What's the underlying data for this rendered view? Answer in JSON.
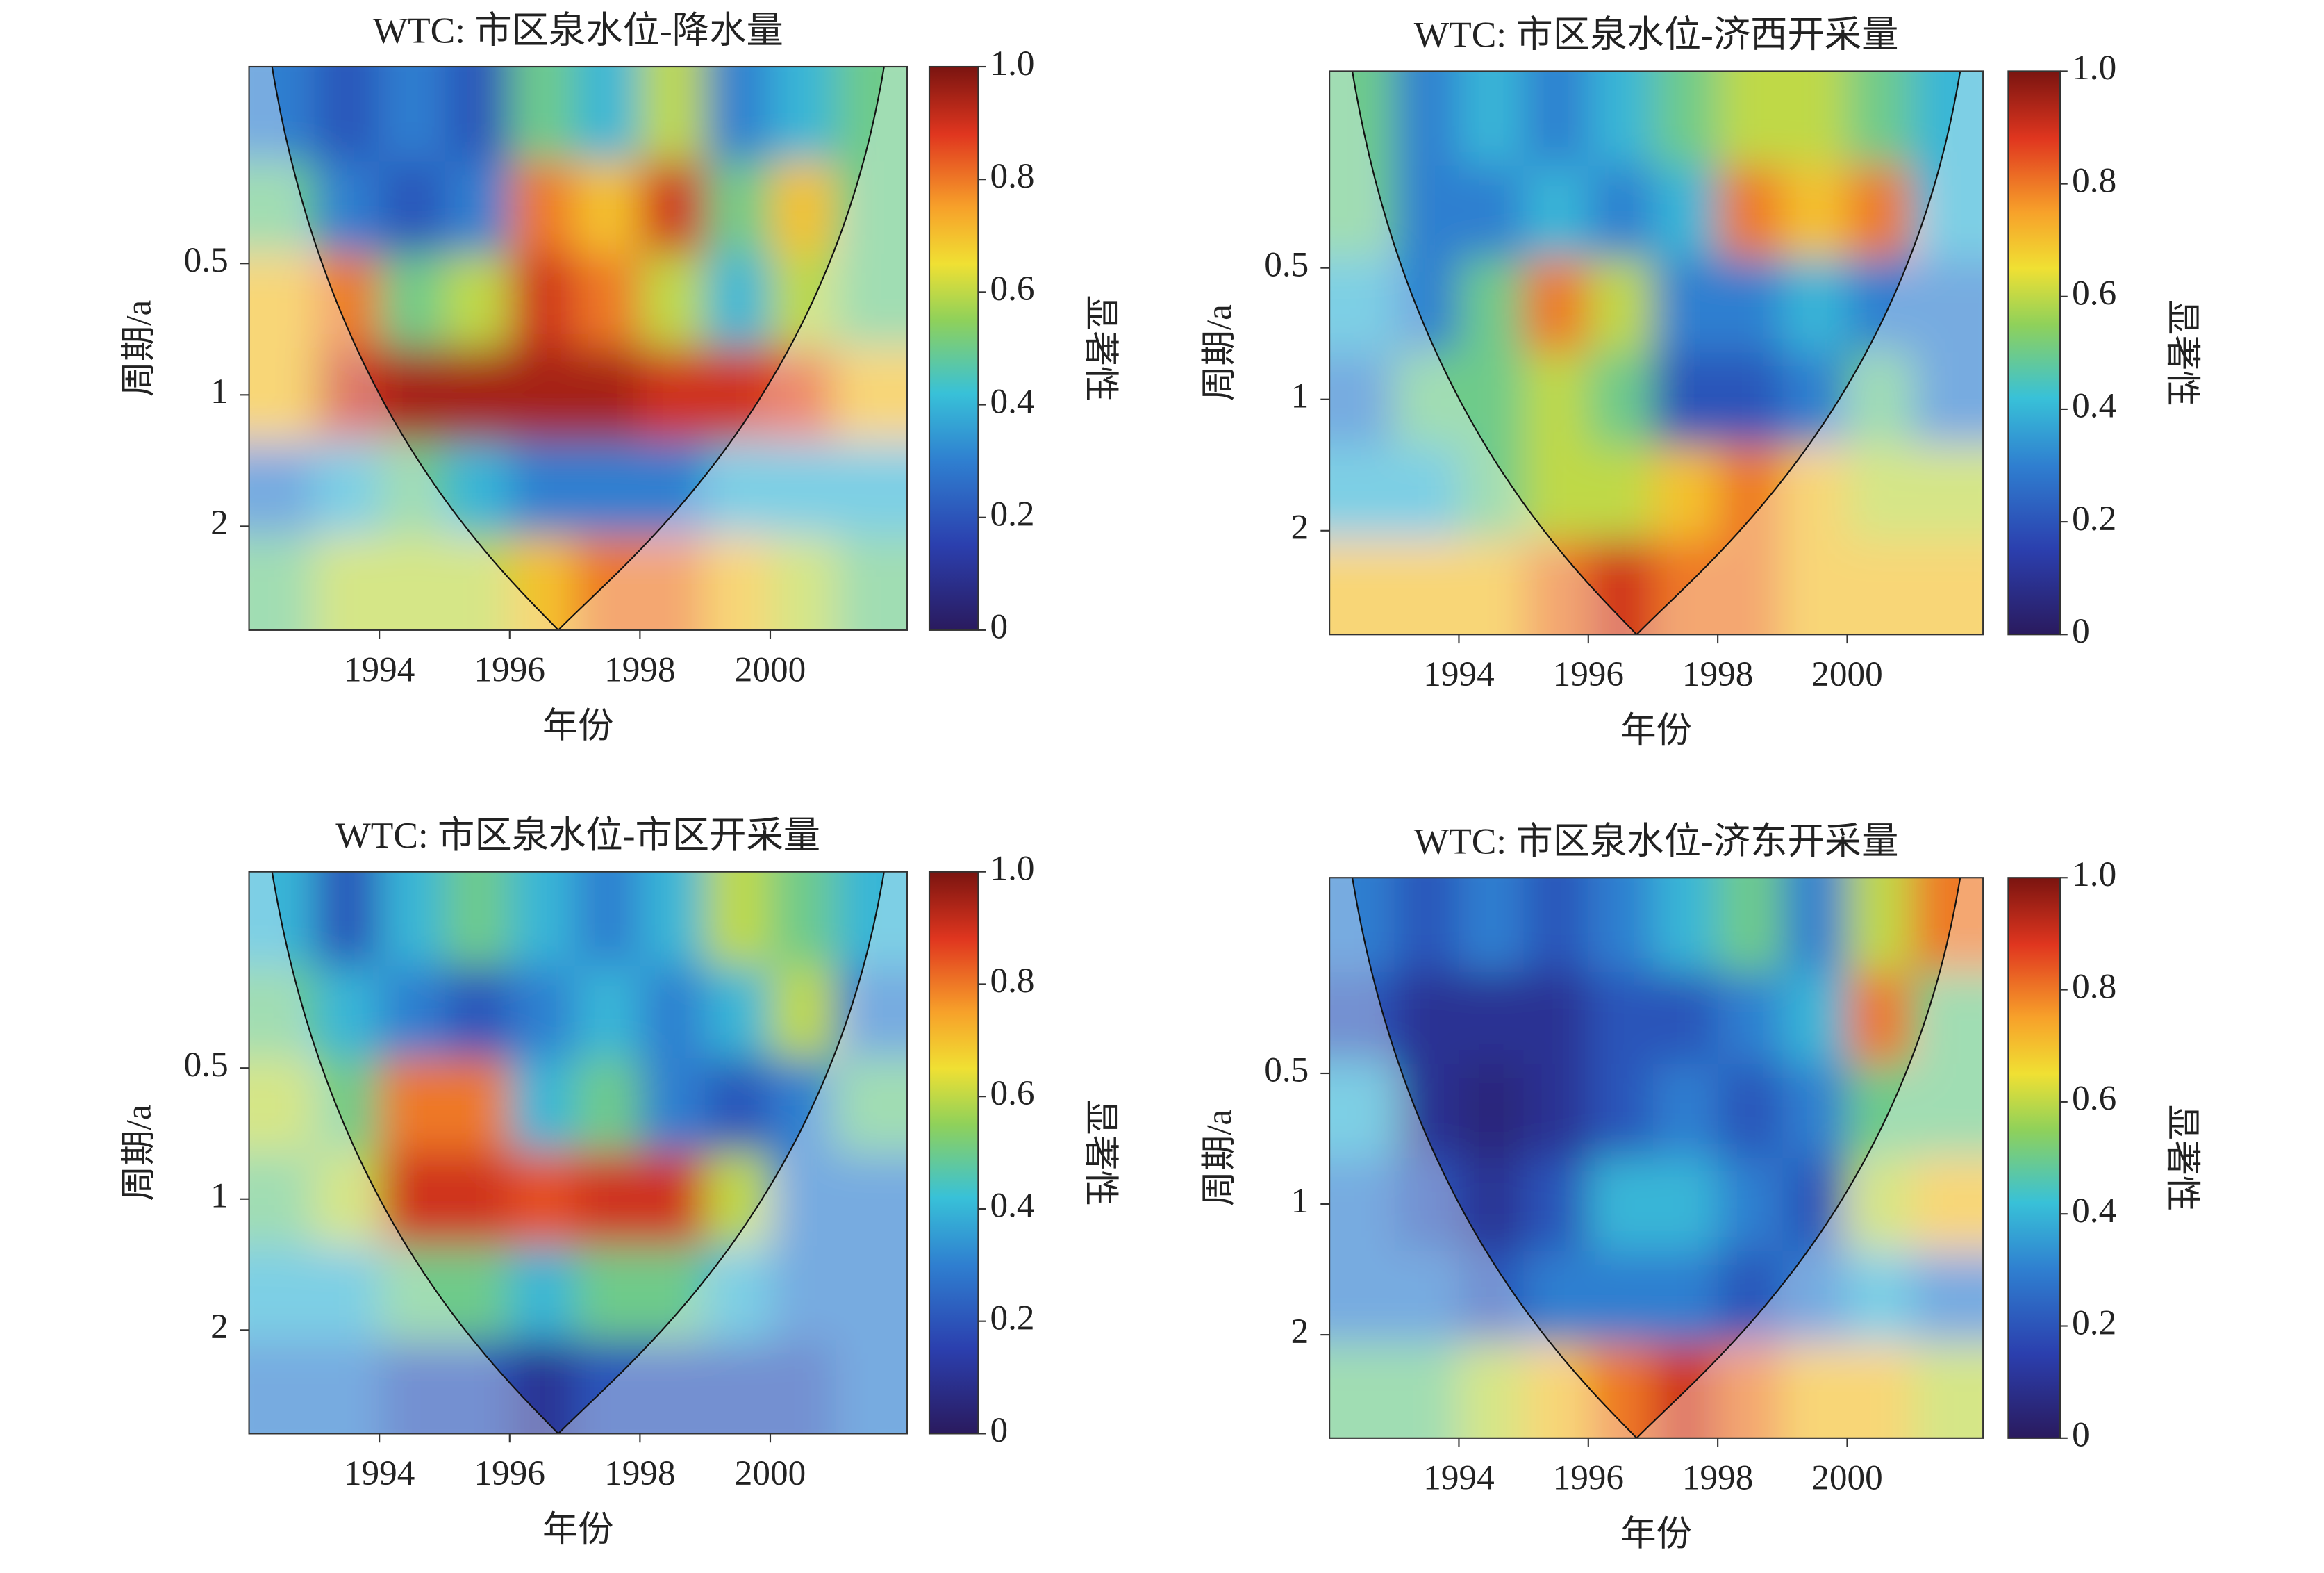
{
  "chart_data": [
    {
      "type": "heatmap",
      "title": "WTC: 市区泉水位-降水量",
      "xlabel": "年份",
      "ylabel": "周期/a",
      "colorbar_label": "显著性",
      "x": [
        1992.5,
        1993.5,
        1994.5,
        1995.5,
        1996.5,
        1997.5,
        1998.5,
        1999.5,
        2000.5,
        2001.5
      ],
      "y": [
        0.23,
        0.37,
        0.61,
        1,
        1.64,
        2.7
      ],
      "values": [
        [
          0.3,
          0.2,
          0.3,
          0.2,
          0.5,
          0.4,
          0.6,
          0.3,
          0.4,
          0.5
        ],
        [
          0.5,
          0.3,
          0.2,
          0.3,
          0.8,
          0.7,
          0.9,
          0.5,
          0.7,
          0.5
        ],
        [
          0.7,
          0.8,
          0.5,
          0.6,
          0.9,
          0.8,
          0.6,
          0.4,
          0.6,
          0.5
        ],
        [
          0.7,
          0.9,
          0.95,
          0.95,
          0.95,
          0.95,
          0.9,
          0.9,
          0.85,
          0.7
        ],
        [
          0.3,
          0.4,
          0.5,
          0.4,
          0.3,
          0.3,
          0.3,
          0.4,
          0.4,
          0.4
        ],
        [
          0.5,
          0.6,
          0.6,
          0.6,
          0.7,
          0.8,
          0.8,
          0.7,
          0.6,
          0.5
        ]
      ],
      "xlim": [
        1992,
        2002.1
      ],
      "ylim": [
        0.177,
        3.46
      ],
      "ylog": true,
      "yinvert": true,
      "xticks": [
        1994,
        1996,
        1998,
        2000
      ],
      "yticks": [
        0.5,
        1,
        2
      ],
      "clim": [
        0,
        1
      ],
      "cticks": [
        0,
        0.2,
        0.4,
        0.6,
        0.8,
        {
          "value": 1,
          "label": "1.0"
        }
      ]
    },
    {
      "type": "heatmap",
      "title": "WTC: 市区泉水位-济西开采量",
      "xlabel": "年份",
      "ylabel": "周期/a",
      "colorbar_label": "显著性",
      "x": [
        1992.5,
        1993.5,
        1994.5,
        1995.5,
        1996.5,
        1997.5,
        1998.5,
        1999.5,
        2000.5,
        2001.5
      ],
      "y": [
        0.23,
        0.37,
        0.61,
        1,
        1.64,
        2.7
      ],
      "values": [
        [
          0.5,
          0.3,
          0.4,
          0.3,
          0.4,
          0.5,
          0.6,
          0.6,
          0.5,
          0.4
        ],
        [
          0.5,
          0.3,
          0.3,
          0.4,
          0.3,
          0.4,
          0.8,
          0.7,
          0.8,
          0.4
        ],
        [
          0.4,
          0.3,
          0.5,
          0.8,
          0.6,
          0.3,
          0.3,
          0.4,
          0.3,
          0.3
        ],
        [
          0.3,
          0.5,
          0.5,
          0.6,
          0.5,
          0.2,
          0.2,
          0.3,
          0.5,
          0.3
        ],
        [
          0.4,
          0.4,
          0.5,
          0.6,
          0.6,
          0.7,
          0.8,
          0.7,
          0.6,
          0.6
        ],
        [
          0.7,
          0.7,
          0.7,
          0.8,
          0.9,
          0.8,
          0.8,
          0.7,
          0.7,
          0.7
        ]
      ],
      "xlim": [
        1992,
        2002.1
      ],
      "ylim": [
        0.177,
        3.46
      ],
      "ylog": true,
      "yinvert": true,
      "xticks": [
        1994,
        1996,
        1998,
        2000
      ],
      "yticks": [
        0.5,
        1,
        2
      ],
      "clim": [
        0,
        1
      ],
      "cticks": [
        0,
        0.2,
        0.4,
        0.6,
        0.8,
        {
          "value": 1,
          "label": "1.0"
        }
      ]
    },
    {
      "type": "heatmap",
      "title": "WTC: 市区泉水位-市区开采量",
      "xlabel": "年份",
      "ylabel": "周期/a",
      "colorbar_label": "显著性",
      "x": [
        1992.5,
        1993.5,
        1994.5,
        1995.5,
        1996.5,
        1997.5,
        1998.5,
        1999.5,
        2000.5,
        2001.5
      ],
      "y": [
        0.23,
        0.37,
        0.61,
        1,
        1.64,
        2.7
      ],
      "values": [
        [
          0.4,
          0.2,
          0.4,
          0.5,
          0.4,
          0.3,
          0.4,
          0.6,
          0.5,
          0.4
        ],
        [
          0.5,
          0.4,
          0.3,
          0.2,
          0.3,
          0.4,
          0.3,
          0.4,
          0.6,
          0.3
        ],
        [
          0.6,
          0.5,
          0.8,
          0.8,
          0.4,
          0.5,
          0.3,
          0.2,
          0.3,
          0.5
        ],
        [
          0.5,
          0.6,
          0.9,
          0.9,
          0.85,
          0.9,
          0.9,
          0.6,
          0.3,
          0.3
        ],
        [
          0.4,
          0.4,
          0.5,
          0.5,
          0.4,
          0.5,
          0.5,
          0.4,
          0.3,
          0.3
        ],
        [
          0.3,
          0.3,
          0.2,
          0.2,
          0.1,
          0.2,
          0.2,
          0.2,
          0.2,
          0.3
        ]
      ],
      "xlim": [
        1992,
        2002.1
      ],
      "ylim": [
        0.177,
        3.46
      ],
      "ylog": true,
      "yinvert": true,
      "xticks": [
        1994,
        1996,
        1998,
        2000
      ],
      "yticks": [
        0.5,
        1,
        2
      ],
      "clim": [
        0,
        1
      ],
      "cticks": [
        0,
        0.2,
        0.4,
        0.6,
        0.8,
        {
          "value": 1,
          "label": "1.0"
        }
      ]
    },
    {
      "type": "heatmap",
      "title": "WTC: 市区泉水位-济东开采量",
      "xlabel": "年份",
      "ylabel": "周期/a",
      "colorbar_label": "显著性",
      "x": [
        1992.5,
        1993.5,
        1994.5,
        1995.5,
        1996.5,
        1997.5,
        1998.5,
        1999.5,
        2000.5,
        2001.5
      ],
      "y": [
        0.23,
        0.37,
        0.61,
        1,
        1.64,
        2.7
      ],
      "values": [
        [
          0.3,
          0.2,
          0.3,
          0.2,
          0.3,
          0.4,
          0.5,
          0.3,
          0.6,
          0.8
        ],
        [
          0.2,
          0.1,
          0.1,
          0.1,
          0.2,
          0.2,
          0.3,
          0.4,
          0.8,
          0.5
        ],
        [
          0.4,
          0.1,
          0.05,
          0.1,
          0.2,
          0.3,
          0.2,
          0.3,
          0.5,
          0.5
        ],
        [
          0.3,
          0.2,
          0.1,
          0.2,
          0.4,
          0.4,
          0.3,
          0.2,
          0.6,
          0.7
        ],
        [
          0.3,
          0.3,
          0.2,
          0.3,
          0.3,
          0.3,
          0.2,
          0.3,
          0.4,
          0.3
        ],
        [
          0.5,
          0.5,
          0.6,
          0.7,
          0.8,
          0.9,
          0.8,
          0.7,
          0.7,
          0.6
        ]
      ],
      "xlim": [
        1992,
        2002.1
      ],
      "ylim": [
        0.177,
        3.46
      ],
      "ylog": true,
      "yinvert": true,
      "xticks": [
        1994,
        1996,
        1998,
        2000
      ],
      "yticks": [
        0.5,
        1,
        2
      ],
      "clim": [
        0,
        1
      ],
      "cticks": [
        0,
        0.2,
        0.4,
        0.6,
        0.8,
        {
          "value": 1,
          "label": "1.0"
        }
      ]
    }
  ]
}
